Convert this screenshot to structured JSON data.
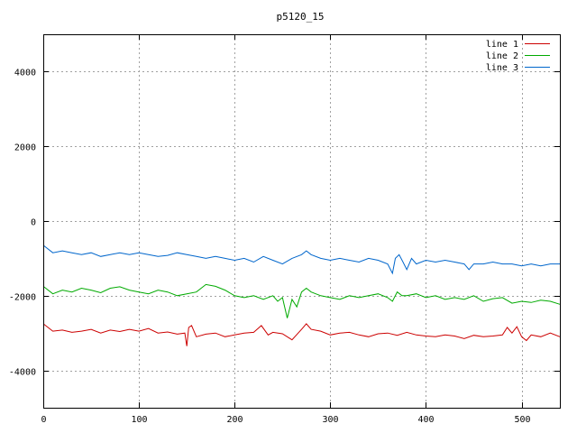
{
  "chart_data": {
    "type": "line",
    "title": "p5120_15",
    "xlabel": "",
    "ylabel": "",
    "xlim": [
      0,
      540
    ],
    "ylim": [
      -5000,
      5000
    ],
    "xticks": [
      0,
      100,
      200,
      300,
      400,
      500
    ],
    "yticks": [
      -4000,
      -2000,
      0,
      2000,
      4000
    ],
    "grid": true,
    "legend_position": "top-right",
    "series": [
      {
        "name": "line 1",
        "color": "#cc0000",
        "x": [
          0,
          10,
          20,
          30,
          40,
          50,
          60,
          70,
          80,
          90,
          100,
          110,
          120,
          130,
          140,
          148,
          150,
          152,
          155,
          160,
          170,
          180,
          190,
          200,
          210,
          220,
          228,
          235,
          240,
          250,
          260,
          270,
          275,
          280,
          290,
          300,
          310,
          320,
          330,
          340,
          350,
          360,
          370,
          380,
          390,
          400,
          410,
          420,
          430,
          440,
          450,
          460,
          470,
          480,
          485,
          490,
          495,
          500,
          505,
          510,
          520,
          530,
          540
        ],
        "values": [
          -2750,
          -2950,
          -2920,
          -2980,
          -2950,
          -2900,
          -3000,
          -2920,
          -2960,
          -2900,
          -2950,
          -2880,
          -3000,
          -2970,
          -3030,
          -3000,
          -3350,
          -2850,
          -2800,
          -3100,
          -3030,
          -3000,
          -3100,
          -3050,
          -3000,
          -2980,
          -2800,
          -3050,
          -2980,
          -3020,
          -3180,
          -2900,
          -2750,
          -2900,
          -2950,
          -3050,
          -3000,
          -2980,
          -3050,
          -3100,
          -3020,
          -3000,
          -3060,
          -2980,
          -3050,
          -3080,
          -3100,
          -3050,
          -3080,
          -3150,
          -3060,
          -3100,
          -3080,
          -3050,
          -2850,
          -3000,
          -2830,
          -3100,
          -3200,
          -3050,
          -3100,
          -3000,
          -3100
        ]
      },
      {
        "name": "line 2",
        "color": "#00aa00",
        "x": [
          0,
          10,
          20,
          30,
          40,
          50,
          60,
          70,
          80,
          90,
          100,
          110,
          120,
          130,
          140,
          150,
          160,
          170,
          180,
          190,
          200,
          210,
          220,
          230,
          240,
          245,
          250,
          255,
          260,
          265,
          270,
          275,
          280,
          290,
          300,
          310,
          320,
          330,
          340,
          350,
          360,
          365,
          370,
          375,
          380,
          390,
          400,
          410,
          420,
          430,
          440,
          450,
          460,
          470,
          480,
          490,
          500,
          510,
          520,
          530,
          540
        ],
        "values": [
          -1750,
          -1950,
          -1850,
          -1900,
          -1800,
          -1850,
          -1920,
          -1800,
          -1760,
          -1850,
          -1900,
          -1950,
          -1850,
          -1900,
          -2000,
          -1950,
          -1900,
          -1700,
          -1750,
          -1850,
          -2000,
          -2050,
          -2000,
          -2100,
          -2000,
          -2150,
          -2050,
          -2600,
          -2100,
          -2300,
          -1900,
          -1800,
          -1900,
          -2000,
          -2050,
          -2100,
          -2000,
          -2050,
          -2000,
          -1950,
          -2050,
          -2150,
          -1900,
          -2000,
          -2000,
          -1950,
          -2050,
          -2000,
          -2100,
          -2050,
          -2100,
          -2000,
          -2150,
          -2080,
          -2050,
          -2200,
          -2150,
          -2180,
          -2120,
          -2150,
          -2230
        ]
      },
      {
        "name": "line 3",
        "color": "#0066cc",
        "x": [
          0,
          10,
          20,
          30,
          40,
          50,
          60,
          70,
          80,
          90,
          100,
          110,
          120,
          130,
          140,
          150,
          160,
          170,
          180,
          190,
          200,
          210,
          220,
          230,
          240,
          250,
          260,
          270,
          275,
          280,
          290,
          300,
          310,
          320,
          330,
          340,
          350,
          360,
          365,
          368,
          372,
          376,
          380,
          385,
          390,
          400,
          410,
          420,
          430,
          440,
          445,
          450,
          460,
          470,
          480,
          490,
          500,
          510,
          520,
          530,
          540
        ],
        "values": [
          -650,
          -850,
          -800,
          -850,
          -900,
          -850,
          -950,
          -900,
          -850,
          -900,
          -850,
          -900,
          -950,
          -920,
          -850,
          -900,
          -950,
          -1000,
          -950,
          -1000,
          -1050,
          -1000,
          -1100,
          -950,
          -1050,
          -1150,
          -1000,
          -900,
          -800,
          -900,
          -1000,
          -1050,
          -1000,
          -1050,
          -1100,
          -1000,
          -1050,
          -1150,
          -1400,
          -1000,
          -900,
          -1100,
          -1300,
          -1000,
          -1150,
          -1050,
          -1100,
          -1050,
          -1100,
          -1150,
          -1300,
          -1150,
          -1150,
          -1100,
          -1150,
          -1150,
          -1200,
          -1150,
          -1200,
          -1150,
          -1150
        ]
      }
    ]
  }
}
